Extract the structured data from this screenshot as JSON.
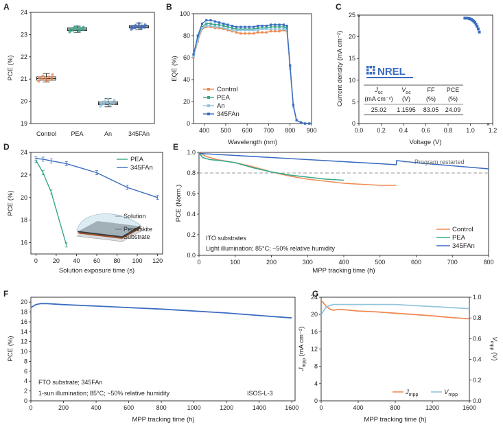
{
  "chart_data": [
    {
      "panel": "A",
      "type": "box",
      "categories": [
        "Control",
        "PEA",
        "An",
        "345FAn"
      ],
      "ylabel": "PCE (%)",
      "ylim": [
        19,
        24
      ],
      "yticks": [
        19,
        20,
        21,
        22,
        23,
        24
      ],
      "boxes": [
        {
          "name": "Control",
          "min": 20.87,
          "q1": 20.95,
          "median": 21.02,
          "q3": 21.1,
          "max": 21.25,
          "color": "#ef8a54",
          "points": [
            20.9,
            20.96,
            21.0,
            21.02,
            21.04,
            21.06,
            21.1,
            21.14,
            21.2,
            20.93
          ]
        },
        {
          "name": "PEA",
          "min": 23.1,
          "q1": 23.18,
          "median": 23.25,
          "q3": 23.3,
          "max": 23.38,
          "color": "#35a889",
          "points": [
            23.12,
            23.16,
            23.2,
            23.22,
            23.24,
            23.26,
            23.28,
            23.3,
            23.33,
            23.36,
            23.18,
            23.27
          ]
        },
        {
          "name": "An",
          "min": 19.75,
          "q1": 19.85,
          "median": 19.92,
          "q3": 19.98,
          "max": 20.12,
          "color": "#93c5dd",
          "points": [
            19.78,
            19.84,
            19.88,
            19.9,
            19.92,
            19.95,
            19.97,
            20.0,
            20.05,
            20.1,
            19.86
          ]
        },
        {
          "name": "345FAn",
          "min": 23.22,
          "q1": 23.3,
          "median": 23.35,
          "q3": 23.4,
          "max": 23.52,
          "color": "#3a6cc0",
          "points": [
            23.24,
            23.28,
            23.31,
            23.33,
            23.35,
            23.37,
            23.39,
            23.41,
            23.44,
            23.5,
            23.3,
            23.36
          ]
        }
      ]
    },
    {
      "panel": "B",
      "type": "line",
      "xlabel": "Wavelength (nm)",
      "ylabel": "EQE (%)",
      "xlim": [
        350,
        900
      ],
      "ylim": [
        0,
        100
      ],
      "xticks": [
        400,
        500,
        600,
        700,
        800,
        900
      ],
      "yticks": [
        0,
        20,
        40,
        60,
        80,
        100
      ],
      "x": [
        350,
        370,
        390,
        410,
        430,
        450,
        470,
        490,
        510,
        530,
        550,
        570,
        590,
        610,
        630,
        650,
        670,
        690,
        710,
        730,
        750,
        770,
        785,
        800,
        815,
        830,
        850,
        870,
        890
      ],
      "series": [
        {
          "name": "Control",
          "color": "#ef8a54",
          "values": [
            60,
            75,
            86,
            88,
            88,
            87,
            87,
            86,
            85,
            84,
            83,
            82,
            82,
            82,
            82,
            83,
            83,
            83,
            84,
            84,
            84,
            85,
            84,
            50,
            15,
            3,
            1,
            0,
            0
          ]
        },
        {
          "name": "PEA",
          "color": "#35a889",
          "values": [
            62,
            78,
            88,
            91,
            91,
            90,
            90,
            89,
            88,
            87,
            86,
            86,
            86,
            86,
            86,
            87,
            87,
            87,
            88,
            88,
            88,
            88,
            87,
            52,
            16,
            3,
            1,
            0,
            0
          ]
        },
        {
          "name": "An",
          "color": "#93c5dd",
          "values": [
            61,
            76,
            87,
            89,
            89,
            88,
            88,
            87,
            86,
            85,
            85,
            85,
            85,
            85,
            85,
            85,
            86,
            86,
            86,
            86,
            86,
            86,
            85,
            51,
            15,
            3,
            1,
            0,
            0
          ]
        },
        {
          "name": "345FAn",
          "color": "#3a6cc0",
          "values": [
            63,
            80,
            91,
            94,
            94,
            93,
            92,
            91,
            90,
            89,
            88,
            88,
            88,
            88,
            88,
            89,
            89,
            89,
            90,
            90,
            90,
            90,
            89,
            53,
            17,
            3,
            1,
            0,
            0
          ]
        }
      ]
    },
    {
      "panel": "C",
      "type": "scatter",
      "xlabel": "Voltage (V)",
      "ylabel": "Current density (mA cm⁻²)",
      "xlim": [
        0,
        1.2
      ],
      "ylim": [
        0,
        25
      ],
      "xticks": [
        0.0,
        0.2,
        0.4,
        0.6,
        0.8,
        1.0,
        1.2
      ],
      "yticks": [
        0,
        5,
        10,
        15,
        20,
        25
      ],
      "color": "#3a6cc0",
      "points": [
        [
          0.95,
          24.3
        ],
        [
          0.97,
          24.3
        ],
        [
          0.99,
          24.2
        ],
        [
          1.0,
          24.1
        ],
        [
          1.01,
          24.0
        ],
        [
          1.02,
          23.8
        ],
        [
          1.03,
          23.6
        ],
        [
          1.04,
          23.3
        ],
        [
          1.05,
          22.9
        ],
        [
          1.06,
          22.4
        ],
        [
          1.07,
          21.8
        ],
        [
          1.08,
          21.1
        ]
      ],
      "markers": [
        {
          "x": 0.0,
          "y": 25.02,
          "symbol": "×"
        },
        {
          "x": 1.1595,
          "y": 0,
          "symbol": "×"
        }
      ],
      "logo": "NREL",
      "table": {
        "headers": [
          [
            "J",
            "sc"
          ],
          [
            "V",
            "oc"
          ],
          [
            "FF"
          ],
          [
            "PCE"
          ]
        ],
        "units": [
          "(mA cm⁻²)",
          "(V)",
          "(%)",
          "(%)"
        ],
        "values": [
          "25.02",
          "1.1595",
          "83.05",
          "24.09"
        ]
      }
    },
    {
      "panel": "D",
      "type": "line",
      "xlabel": "Solution exposure time (s)",
      "ylabel": "PCE (%)",
      "xlim": [
        -5,
        125
      ],
      "ylim": [
        15,
        24
      ],
      "xticks": [
        0,
        20,
        40,
        60,
        80,
        100,
        120
      ],
      "yticks": [
        16,
        18,
        20,
        22,
        24
      ],
      "series": [
        {
          "name": "PEA",
          "color": "#35a889",
          "x": [
            0,
            7,
            15,
            30
          ],
          "values": [
            23.3,
            22.2,
            20.5,
            15.8
          ]
        },
        {
          "name": "345FAn",
          "color": "#3a6cc0",
          "x": [
            0,
            7,
            15,
            30,
            60,
            90,
            120
          ],
          "values": [
            23.45,
            23.4,
            23.25,
            23.0,
            22.2,
            20.9,
            20.0
          ]
        }
      ],
      "inset_labels": [
        "Solution",
        "Perovskite",
        "Substrate"
      ]
    },
    {
      "panel": "E",
      "type": "line",
      "xlabel": "MPP tracking time (h)",
      "ylabel": "PCE (Norm.)",
      "xlim": [
        0,
        800
      ],
      "ylim": [
        0,
        1.0
      ],
      "xticks": [
        0,
        100,
        200,
        300,
        400,
        500,
        600,
        700,
        800
      ],
      "yticks": [
        0.0,
        0.2,
        0.4,
        0.6,
        0.8,
        1.0
      ],
      "reference_line": 0.8,
      "series": [
        {
          "name": "Control",
          "color": "#ef8a54",
          "x": [
            0,
            20,
            50,
            100,
            150,
            200,
            250,
            300,
            350,
            400,
            450,
            500,
            545
          ],
          "values": [
            1.0,
            0.96,
            0.93,
            0.9,
            0.86,
            0.81,
            0.77,
            0.74,
            0.72,
            0.7,
            0.69,
            0.68,
            0.68
          ]
        },
        {
          "name": "PEA",
          "color": "#35a889",
          "x": [
            0,
            10,
            30,
            60,
            100,
            150,
            200,
            250,
            300,
            350,
            400
          ],
          "values": [
            1.0,
            0.95,
            0.93,
            0.92,
            0.9,
            0.85,
            0.81,
            0.78,
            0.76,
            0.74,
            0.73
          ]
        },
        {
          "name": "345FAn",
          "color": "#3a6cc0",
          "x": [
            0,
            50,
            100,
            200,
            300,
            400,
            500,
            545,
            546,
            600,
            700,
            800
          ],
          "values": [
            0.99,
            0.98,
            0.97,
            0.95,
            0.93,
            0.91,
            0.89,
            0.88,
            0.92,
            0.9,
            0.87,
            0.84
          ]
        }
      ],
      "annotations": [
        "Program restarted",
        "ITO substrates",
        "Light illumination; 85°C; ~50% relative humidity"
      ]
    },
    {
      "panel": "F",
      "type": "line",
      "xlabel": "MPP tracking time (h)",
      "ylabel": "PCE (%)",
      "xlim": [
        0,
        1620
      ],
      "ylim": [
        0,
        21
      ],
      "xticks": [
        0,
        200,
        400,
        600,
        800,
        1000,
        1200,
        1400,
        1600
      ],
      "yticks": [
        0,
        2,
        4,
        6,
        8,
        10,
        12,
        14,
        16,
        18,
        20
      ],
      "series": [
        {
          "name": "345FAn",
          "color": "#3a6cc0",
          "x": [
            0,
            30,
            60,
            100,
            200,
            400,
            600,
            800,
            1000,
            1200,
            1400,
            1600
          ],
          "values": [
            18.9,
            19.5,
            19.7,
            19.7,
            19.5,
            19.2,
            18.9,
            18.6,
            18.2,
            17.8,
            17.3,
            16.8
          ]
        }
      ],
      "annotations": [
        "FTO substrate; 345FAn",
        "1-sun illumination; 85°C; ~50% relative humidity",
        "ISOS-L-3"
      ]
    },
    {
      "panel": "G",
      "type": "line",
      "xlabel": "MPP tracking time (h)",
      "ylabel": [
        "J",
        "mpp",
        " (mA cm⁻²)"
      ],
      "y2label": [
        "V",
        "mpp",
        " (V)"
      ],
      "xlim": [
        0,
        1600
      ],
      "ylim": [
        0,
        24
      ],
      "y2lim": [
        0,
        1.0
      ],
      "xticks": [
        0,
        400,
        800,
        1200,
        1600
      ],
      "yticks": [
        0,
        4,
        8,
        12,
        16,
        20,
        24
      ],
      "y2ticks": [
        0.0,
        0.2,
        0.4,
        0.6,
        0.8,
        1.0
      ],
      "series": [
        {
          "name": [
            "J",
            "mpp"
          ],
          "axis": "left",
          "color": "#ef8a54",
          "x": [
            0,
            20,
            50,
            90,
            130,
            200,
            400,
            600,
            800,
            1000,
            1200,
            1400,
            1600
          ],
          "values": [
            23.2,
            22.8,
            22.0,
            21.3,
            21.0,
            21.2,
            20.8,
            20.6,
            20.3,
            20.0,
            19.7,
            19.3,
            19.0
          ]
        },
        {
          "name": [
            "V",
            "mpp"
          ],
          "axis": "right",
          "color": "#93c5dd",
          "x": [
            0,
            20,
            50,
            90,
            130,
            200,
            400,
            600,
            800,
            1000,
            1200,
            1400,
            1600
          ],
          "values": [
            0.83,
            0.86,
            0.9,
            0.92,
            0.93,
            0.93,
            0.93,
            0.93,
            0.93,
            0.92,
            0.91,
            0.9,
            0.89
          ]
        }
      ]
    }
  ]
}
